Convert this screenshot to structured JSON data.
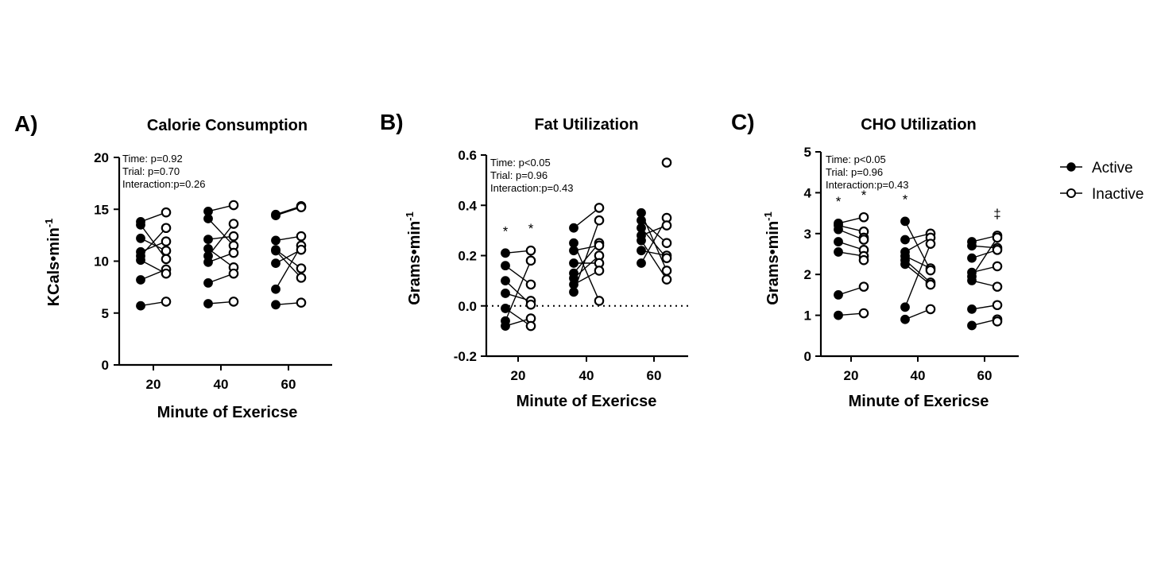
{
  "legend": {
    "entries": [
      {
        "label": "Active",
        "marker": "filled-circle"
      },
      {
        "label": "Inactive",
        "marker": "open-circle"
      }
    ],
    "placement": "right"
  },
  "colors": {
    "marker": "#000000",
    "background": "#ffffff"
  },
  "chart_data": [
    {
      "type": "scatter",
      "panel_label": "A)",
      "title": "Calorie Consumption",
      "xlabel": "Minute of  Exericse",
      "ylabel": "KCals•min",
      "ylabel_superscript": "-1",
      "x_ticks": [
        "20",
        "40",
        "60"
      ],
      "y_ticks": [
        "0",
        "5",
        "10",
        "15",
        "20"
      ],
      "ylim": [
        0,
        20
      ],
      "zero_reference_line": false,
      "stats": [
        "Time: p=0.92",
        "Trial: p=0.70",
        "Interaction:p=0.26"
      ],
      "groups": [
        {
          "minute": 20,
          "active": [
            13.8,
            13.5,
            12.2,
            10.9,
            10.5,
            10.1,
            8.2,
            5.7
          ],
          "inactive": [
            14.7,
            13.2,
            11.9,
            11.0,
            10.2,
            9.2,
            8.8,
            6.1
          ],
          "sig_active": "",
          "sig_inactive": ""
        },
        {
          "minute": 40,
          "active": [
            14.8,
            14.1,
            12.1,
            11.2,
            10.5,
            9.9,
            7.9,
            5.9
          ],
          "inactive": [
            15.4,
            13.6,
            12.4,
            11.5,
            10.8,
            9.4,
            8.8,
            6.1
          ],
          "sig_active": "",
          "sig_inactive": ""
        },
        {
          "minute": 60,
          "active": [
            14.5,
            14.4,
            12.0,
            11.1,
            11.0,
            9.8,
            7.3,
            5.8
          ],
          "inactive": [
            15.3,
            15.2,
            12.4,
            11.5,
            11.1,
            9.3,
            8.4,
            6.0
          ],
          "sig_active": "",
          "sig_inactive": ""
        }
      ],
      "links": [
        {
          "minute": 20,
          "pairs": [
            [
              0,
              0
            ],
            [
              1,
              4
            ],
            [
              2,
              3
            ],
            [
              3,
              2
            ],
            [
              4,
              1
            ],
            [
              5,
              6
            ],
            [
              6,
              5
            ],
            [
              7,
              7
            ]
          ]
        },
        {
          "minute": 40,
          "pairs": [
            [
              0,
              0
            ],
            [
              1,
              3
            ],
            [
              2,
              2
            ],
            [
              3,
              5
            ],
            [
              4,
              1
            ],
            [
              5,
              4
            ],
            [
              6,
              6
            ],
            [
              7,
              7
            ]
          ]
        },
        {
          "minute": 60,
          "pairs": [
            [
              0,
              0
            ],
            [
              1,
              1
            ],
            [
              2,
              2
            ],
            [
              3,
              5
            ],
            [
              4,
              6
            ],
            [
              5,
              4
            ],
            [
              6,
              3
            ],
            [
              7,
              7
            ]
          ]
        }
      ]
    },
    {
      "type": "scatter",
      "panel_label": "B)",
      "title": "Fat Utilization",
      "xlabel": "Minute of  Exericse",
      "ylabel": "Grams•min",
      "ylabel_superscript": "-1",
      "x_ticks": [
        "20",
        "40",
        "60"
      ],
      "y_ticks": [
        "-0.2",
        "0.0",
        "0.2",
        "0.4",
        "0.6"
      ],
      "ylim": [
        -0.2,
        0.6
      ],
      "zero_reference_line": true,
      "stats": [
        "Time: p<0.05",
        "Trial: p=0.96",
        "Interaction:p=0.43"
      ],
      "groups": [
        {
          "minute": 20,
          "active": [
            0.21,
            0.16,
            0.1,
            0.05,
            -0.01,
            -0.06,
            -0.08
          ],
          "inactive": [
            0.22,
            0.18,
            0.085,
            0.02,
            0.005,
            -0.05,
            -0.08
          ],
          "sig_active": "*",
          "sig_inactive": "*"
        },
        {
          "minute": 40,
          "active": [
            0.31,
            0.25,
            0.22,
            0.17,
            0.13,
            0.11,
            0.085,
            0.055
          ],
          "inactive": [
            0.39,
            0.34,
            0.25,
            0.24,
            0.2,
            0.17,
            0.14,
            0.02
          ],
          "sig_active": "",
          "sig_inactive": ""
        },
        {
          "minute": 60,
          "active": [
            0.37,
            0.34,
            0.31,
            0.28,
            0.26,
            0.22,
            0.17
          ],
          "inactive": [
            0.57,
            0.35,
            0.32,
            0.25,
            0.2,
            0.19,
            0.14,
            0.105
          ],
          "sig_active": "",
          "sig_inactive": ""
        }
      ],
      "links": [
        {
          "minute": 20,
          "pairs": [
            [
              0,
              0
            ],
            [
              1,
              2
            ],
            [
              2,
              4
            ],
            [
              3,
              3
            ],
            [
              4,
              6
            ],
            [
              5,
              1
            ],
            [
              6,
              5
            ]
          ]
        },
        {
          "minute": 40,
          "pairs": [
            [
              0,
              0
            ],
            [
              1,
              7
            ],
            [
              2,
              3
            ],
            [
              3,
              5
            ],
            [
              4,
              2
            ],
            [
              5,
              4
            ],
            [
              6,
              6
            ],
            [
              7,
              1
            ]
          ]
        },
        {
          "minute": 60,
          "pairs": [
            [
              0,
              6
            ],
            [
              1,
              3
            ],
            [
              2,
              5
            ],
            [
              3,
              2
            ],
            [
              4,
              7
            ],
            [
              5,
              4
            ],
            [
              6,
              1
            ]
          ]
        }
      ]
    },
    {
      "type": "scatter",
      "panel_label": "C)",
      "title": "CHO Utilization",
      "xlabel": "Minute of  Exericse",
      "ylabel": "Grams•min",
      "ylabel_superscript": "-1",
      "x_ticks": [
        "20",
        "40",
        "60"
      ],
      "y_ticks": [
        "0",
        "1",
        "2",
        "3",
        "4",
        "5"
      ],
      "ylim": [
        0,
        5
      ],
      "zero_reference_line": false,
      "stats": [
        "Time: p<0.05",
        "Trial: p=0.96",
        "Interaction:p=0.43"
      ],
      "groups": [
        {
          "minute": 20,
          "active": [
            3.25,
            3.2,
            3.1,
            2.8,
            2.55,
            1.5,
            1.0
          ],
          "inactive": [
            3.4,
            3.05,
            2.9,
            2.85,
            2.6,
            2.45,
            2.35,
            1.7,
            1.05
          ],
          "sig_active": "*",
          "sig_inactive": "*"
        },
        {
          "minute": 40,
          "active": [
            3.3,
            2.85,
            2.55,
            2.45,
            2.35,
            2.25,
            1.2,
            0.9
          ],
          "inactive": [
            3.0,
            2.9,
            2.75,
            2.15,
            2.1,
            1.8,
            1.75,
            1.15
          ],
          "sig_active": "*",
          "sig_inactive": ""
        },
        {
          "minute": 60,
          "active": [
            2.8,
            2.7,
            2.4,
            2.05,
            1.95,
            1.85,
            1.15,
            0.75
          ],
          "inactive": [
            2.95,
            2.9,
            2.65,
            2.6,
            2.2,
            1.7,
            1.25,
            0.9,
            0.85
          ],
          "sig_active": "",
          "sig_inactive": "‡"
        }
      ],
      "links": [
        {
          "minute": 20,
          "pairs": [
            [
              0,
              0
            ],
            [
              1,
              1
            ],
            [
              2,
              3
            ],
            [
              3,
              4
            ],
            [
              4,
              5
            ],
            [
              5,
              7
            ],
            [
              6,
              8
            ]
          ]
        },
        {
          "minute": 40,
          "pairs": [
            [
              0,
              4
            ],
            [
              1,
              0
            ],
            [
              2,
              1
            ],
            [
              3,
              3
            ],
            [
              4,
              5
            ],
            [
              5,
              6
            ],
            [
              6,
              2
            ],
            [
              7,
              7
            ]
          ]
        },
        {
          "minute": 60,
          "pairs": [
            [
              0,
              0
            ],
            [
              1,
              2
            ],
            [
              2,
              3
            ],
            [
              3,
              4
            ],
            [
              4,
              1
            ],
            [
              5,
              5
            ],
            [
              6,
              6
            ],
            [
              7,
              7
            ]
          ]
        }
      ]
    }
  ]
}
